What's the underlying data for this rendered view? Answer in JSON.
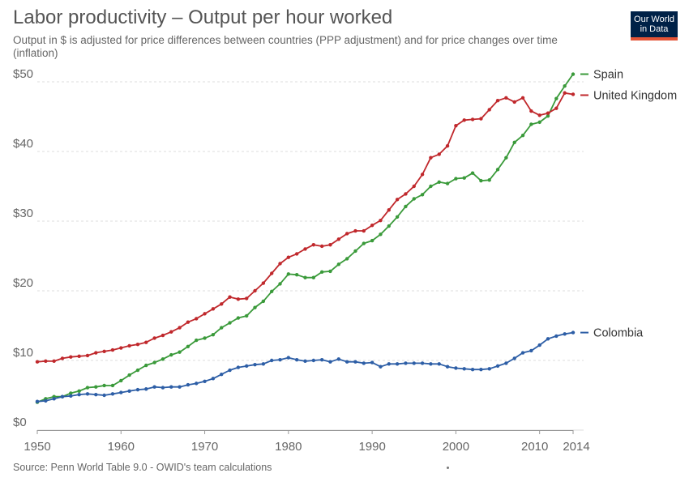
{
  "header": {
    "title": "Labor productivity – Output per hour worked",
    "subtitle": "Output in $ is adjusted for price differences between countries (PPP adjustment) and for price changes over time (inflation)",
    "logo_line1": "Our World",
    "logo_line2": "in Data"
  },
  "footer": {
    "source": "Source: Penn World Table 9.0 - OWID's team calculations"
  },
  "chart_data": {
    "type": "line",
    "title": "Labor productivity – Output per hour worked",
    "xlabel": "",
    "ylabel": "",
    "xlim": [
      1950,
      2014
    ],
    "ylim": [
      0,
      53
    ],
    "x_ticks": [
      1950,
      1960,
      1970,
      1980,
      1990,
      2000,
      2010,
      2014
    ],
    "y_ticks": [
      0,
      10,
      20,
      30,
      40,
      50
    ],
    "y_tick_labels": [
      "$0",
      "$10",
      "$20",
      "$30",
      "$40",
      "$50"
    ],
    "grid": "horizontal dashed",
    "legend": "right, end of lines",
    "series": [
      {
        "name": "Spain",
        "color": "#3a9a3a",
        "x": [
          1950,
          1951,
          1952,
          1953,
          1954,
          1955,
          1956,
          1957,
          1958,
          1959,
          1960,
          1961,
          1962,
          1963,
          1964,
          1965,
          1966,
          1967,
          1968,
          1969,
          1970,
          1971,
          1972,
          1973,
          1974,
          1975,
          1976,
          1977,
          1978,
          1979,
          1980,
          1981,
          1982,
          1983,
          1984,
          1985,
          1986,
          1987,
          1988,
          1989,
          1990,
          1991,
          1992,
          1993,
          1994,
          1995,
          1996,
          1997,
          1998,
          1999,
          2000,
          2001,
          2002,
          2003,
          2004,
          2005,
          2006,
          2007,
          2008,
          2009,
          2010,
          2011,
          2012,
          2013,
          2014
        ],
        "values": [
          4.0,
          4.5,
          4.8,
          4.8,
          5.3,
          5.6,
          6.1,
          6.2,
          6.4,
          6.4,
          7.1,
          7.9,
          8.6,
          9.3,
          9.7,
          10.2,
          10.8,
          11.2,
          12.0,
          12.9,
          13.2,
          13.7,
          14.7,
          15.4,
          16.1,
          16.4,
          17.6,
          18.5,
          19.9,
          21.0,
          22.4,
          22.3,
          21.9,
          21.9,
          22.7,
          22.8,
          23.8,
          24.6,
          25.7,
          26.8,
          27.2,
          28.1,
          29.3,
          30.6,
          32.1,
          33.2,
          33.8,
          35.0,
          35.6,
          35.4,
          36.1,
          36.2,
          36.9,
          35.8,
          35.9,
          37.4,
          39.1,
          41.3,
          42.3,
          43.9,
          44.2,
          45.1,
          47.6,
          49.4,
          51.1
        ]
      },
      {
        "name": "United Kingdom",
        "color": "#c0282c",
        "x": [
          1950,
          1951,
          1952,
          1953,
          1954,
          1955,
          1956,
          1957,
          1958,
          1959,
          1960,
          1961,
          1962,
          1963,
          1964,
          1965,
          1966,
          1967,
          1968,
          1969,
          1970,
          1971,
          1972,
          1973,
          1974,
          1975,
          1976,
          1977,
          1978,
          1979,
          1980,
          1981,
          1982,
          1983,
          1984,
          1985,
          1986,
          1987,
          1988,
          1989,
          1990,
          1991,
          1992,
          1993,
          1994,
          1995,
          1996,
          1997,
          1998,
          1999,
          2000,
          2001,
          2002,
          2003,
          2004,
          2005,
          2006,
          2007,
          2008,
          2009,
          2010,
          2011,
          2012,
          2013,
          2014
        ],
        "values": [
          9.8,
          9.9,
          9.9,
          10.3,
          10.5,
          10.6,
          10.7,
          11.1,
          11.3,
          11.5,
          11.8,
          12.1,
          12.3,
          12.6,
          13.2,
          13.6,
          14.1,
          14.7,
          15.5,
          16.0,
          16.7,
          17.4,
          18.1,
          19.1,
          18.8,
          18.9,
          20.0,
          21.1,
          22.5,
          23.9,
          24.8,
          25.3,
          26.0,
          26.6,
          26.4,
          26.6,
          27.4,
          28.2,
          28.6,
          28.6,
          29.4,
          30.1,
          31.6,
          33.1,
          33.9,
          35.0,
          36.7,
          39.1,
          39.6,
          40.8,
          43.7,
          44.5,
          44.6,
          44.7,
          46.0,
          47.3,
          47.7,
          47.1,
          47.7,
          45.8,
          45.2,
          45.5,
          46.2,
          48.4,
          48.2
        ]
      },
      {
        "name": "Colombia",
        "color": "#2d5ea6",
        "x": [
          1950,
          1951,
          1952,
          1953,
          1954,
          1955,
          1956,
          1957,
          1958,
          1959,
          1960,
          1961,
          1962,
          1963,
          1964,
          1965,
          1966,
          1967,
          1968,
          1969,
          1970,
          1971,
          1972,
          1973,
          1974,
          1975,
          1976,
          1977,
          1978,
          1979,
          1980,
          1981,
          1982,
          1983,
          1984,
          1985,
          1986,
          1987,
          1988,
          1989,
          1990,
          1991,
          1992,
          1993,
          1994,
          1995,
          1996,
          1997,
          1998,
          1999,
          2000,
          2001,
          2002,
          2003,
          2004,
          2005,
          2006,
          2007,
          2008,
          2009,
          2010,
          2011,
          2012,
          2013,
          2014
        ],
        "values": [
          4.1,
          4.2,
          4.5,
          4.8,
          4.9,
          5.1,
          5.2,
          5.1,
          5.0,
          5.2,
          5.4,
          5.6,
          5.8,
          5.9,
          6.2,
          6.1,
          6.2,
          6.2,
          6.5,
          6.7,
          7.0,
          7.4,
          8.0,
          8.6,
          9.0,
          9.2,
          9.4,
          9.5,
          10.0,
          10.1,
          10.4,
          10.1,
          9.9,
          10.0,
          10.1,
          9.8,
          10.2,
          9.8,
          9.8,
          9.6,
          9.7,
          9.1,
          9.5,
          9.5,
          9.6,
          9.6,
          9.6,
          9.5,
          9.5,
          9.1,
          8.9,
          8.8,
          8.7,
          8.7,
          8.8,
          9.2,
          9.6,
          10.3,
          11.1,
          11.4,
          12.2,
          13.1,
          13.5,
          13.8,
          14.0
        ]
      }
    ]
  }
}
